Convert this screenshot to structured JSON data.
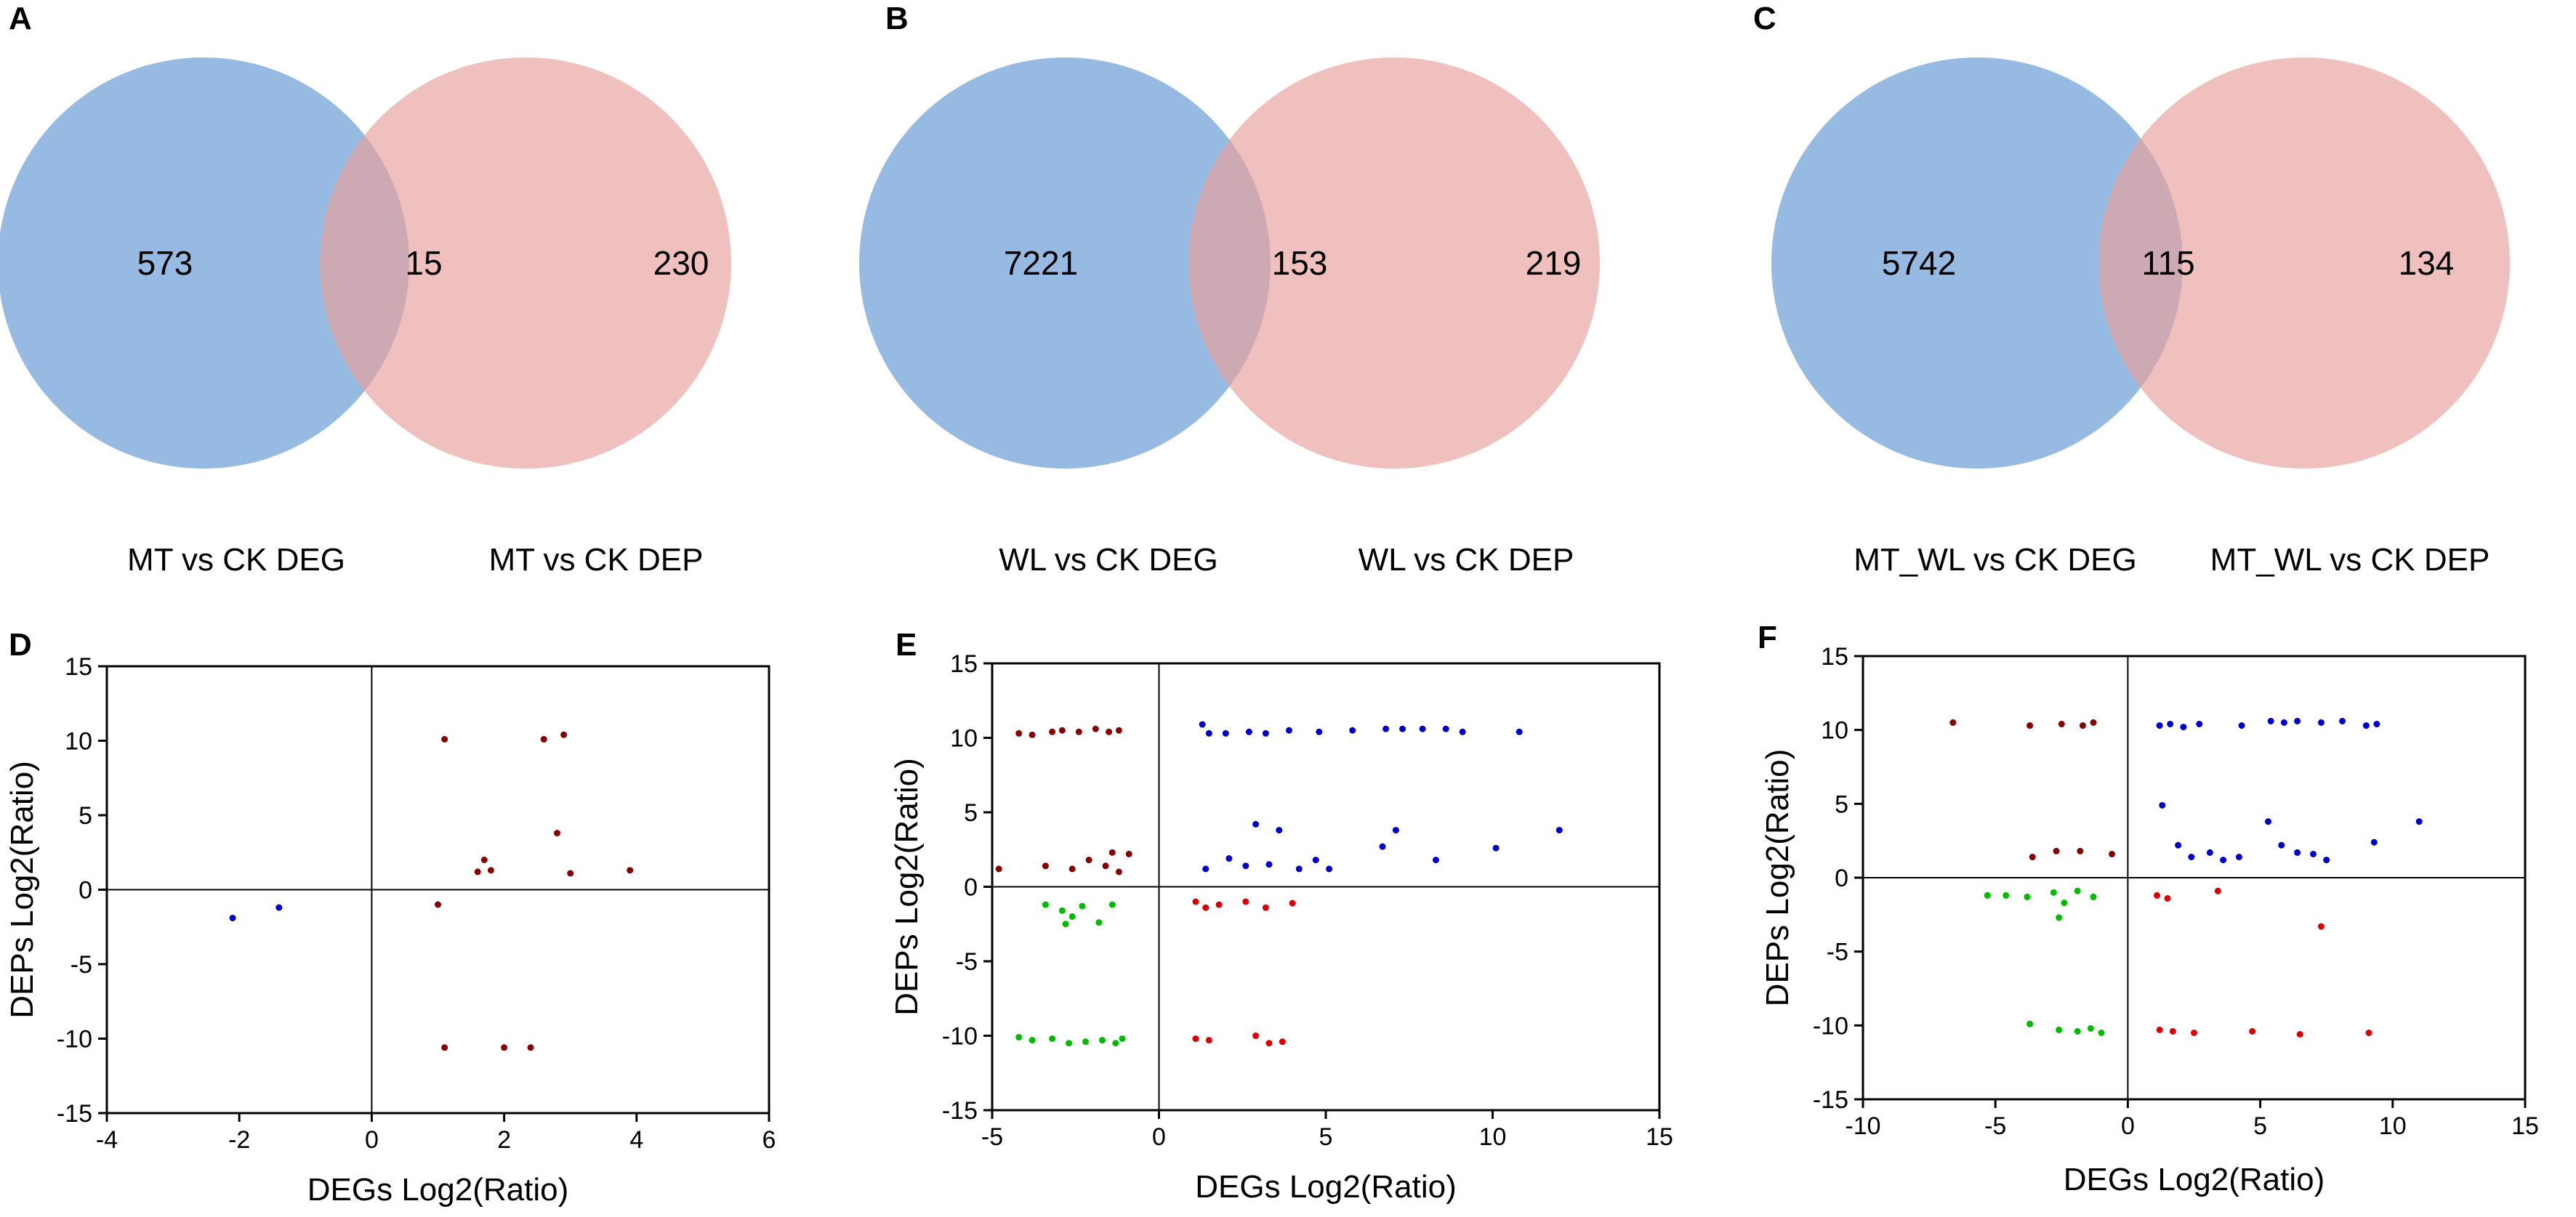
{
  "colors": {
    "deg_circle": "#6d9fd5",
    "dep_circle": "#e7a29e",
    "up_up": "#0000cc",
    "down_up": "#880000",
    "up_down": "#dd0000",
    "down_down": "#00bb00",
    "axis": "#000000"
  },
  "venn": [
    {
      "panel": "A",
      "left_only": "573",
      "overlap": "15",
      "right_only": "230",
      "left_label": "MT vs CK DEG",
      "right_label": "MT vs CK DEP"
    },
    {
      "panel": "B",
      "left_only": "7221",
      "overlap": "153",
      "right_only": "219",
      "left_label": "WL vs CK DEG",
      "right_label": "WL vs CK DEP"
    },
    {
      "panel": "C",
      "left_only": "5742",
      "overlap": "115",
      "right_only": "134",
      "left_label": "MT_WL vs CK DEG",
      "right_label": "MT_WL vs CK DEP"
    }
  ],
  "chart_data": [
    {
      "panel": "D",
      "type": "scatter",
      "xlabel": "DEGs Log2(Ratio)",
      "ylabel": "DEPs Log2(Ratio)",
      "xlim": [
        -4,
        6
      ],
      "ylim": [
        -15,
        15
      ],
      "xticks": [
        -4,
        -2,
        0,
        2,
        4,
        6
      ],
      "yticks": [
        15,
        10,
        5,
        0,
        -5,
        -10,
        -15
      ],
      "series": [
        {
          "name": "blue",
          "color": "#0000cc",
          "points": [
            [
              -2.1,
              -1.9
            ],
            [
              -1.4,
              -1.2
            ]
          ]
        },
        {
          "name": "darkred",
          "color": "#880000",
          "points": [
            [
              1.1,
              10.1
            ],
            [
              2.6,
              10.1
            ],
            [
              2.9,
              10.4
            ],
            [
              2.8,
              3.8
            ],
            [
              1.7,
              2.0
            ],
            [
              1.8,
              1.3
            ],
            [
              1.6,
              1.2
            ],
            [
              3.0,
              1.1
            ],
            [
              3.9,
              1.3
            ],
            [
              1.0,
              -1.0
            ],
            [
              1.1,
              -10.6
            ],
            [
              2.0,
              -10.6
            ],
            [
              2.4,
              -10.6
            ]
          ]
        }
      ]
    },
    {
      "panel": "E",
      "type": "scatter",
      "xlabel": "DEGs Log2(Ratio)",
      "ylabel": "DEPs Log2(Ratio)",
      "xlim": [
        -5,
        15
      ],
      "ylim": [
        -15,
        15
      ],
      "xticks": [
        -5,
        0,
        5,
        10,
        15
      ],
      "yticks": [
        15,
        10,
        5,
        0,
        -5,
        -10,
        -15
      ],
      "series": [
        {
          "name": "blue",
          "color": "#0000cc",
          "points": [
            [
              1.3,
              10.9
            ],
            [
              1.5,
              10.3
            ],
            [
              2.0,
              10.3
            ],
            [
              2.7,
              10.4
            ],
            [
              3.2,
              10.3
            ],
            [
              3.9,
              10.5
            ],
            [
              4.8,
              10.4
            ],
            [
              5.8,
              10.5
            ],
            [
              6.8,
              10.6
            ],
            [
              7.3,
              10.6
            ],
            [
              7.9,
              10.6
            ],
            [
              8.6,
              10.6
            ],
            [
              9.1,
              10.4
            ],
            [
              10.8,
              10.4
            ],
            [
              1.4,
              1.2
            ],
            [
              2.1,
              1.9
            ],
            [
              2.6,
              1.4
            ],
            [
              2.9,
              4.2
            ],
            [
              3.3,
              1.5
            ],
            [
              3.6,
              3.8
            ],
            [
              4.2,
              1.2
            ],
            [
              4.7,
              1.8
            ],
            [
              5.1,
              1.2
            ],
            [
              6.7,
              2.7
            ],
            [
              7.1,
              3.8
            ],
            [
              8.3,
              1.8
            ],
            [
              10.1,
              2.6
            ],
            [
              12.0,
              3.8
            ]
          ]
        },
        {
          "name": "darkred",
          "color": "#880000",
          "points": [
            [
              -4.2,
              10.3
            ],
            [
              -3.8,
              10.2
            ],
            [
              -3.2,
              10.4
            ],
            [
              -2.9,
              10.5
            ],
            [
              -2.4,
              10.4
            ],
            [
              -1.9,
              10.6
            ],
            [
              -1.5,
              10.4
            ],
            [
              -1.2,
              10.5
            ],
            [
              -4.8,
              1.2
            ],
            [
              -3.4,
              1.4
            ],
            [
              -2.6,
              1.2
            ],
            [
              -2.1,
              1.8
            ],
            [
              -1.6,
              1.4
            ],
            [
              -1.4,
              2.3
            ],
            [
              -1.2,
              1.0
            ],
            [
              -0.9,
              2.2
            ]
          ]
        },
        {
          "name": "red",
          "color": "#dd0000",
          "points": [
            [
              1.1,
              -1.0
            ],
            [
              1.4,
              -1.4
            ],
            [
              1.8,
              -1.2
            ],
            [
              2.6,
              -1.0
            ],
            [
              3.2,
              -1.4
            ],
            [
              4.0,
              -1.1
            ],
            [
              1.1,
              -10.2
            ],
            [
              1.5,
              -10.3
            ],
            [
              2.9,
              -10.0
            ],
            [
              3.3,
              -10.5
            ],
            [
              3.7,
              -10.4
            ]
          ]
        },
        {
          "name": "green",
          "color": "#00bb00",
          "points": [
            [
              -4.2,
              -10.1
            ],
            [
              -3.8,
              -10.3
            ],
            [
              -3.2,
              -10.2
            ],
            [
              -2.7,
              -10.5
            ],
            [
              -2.2,
              -10.4
            ],
            [
              -1.7,
              -10.3
            ],
            [
              -1.3,
              -10.5
            ],
            [
              -1.1,
              -10.2
            ],
            [
              -3.4,
              -1.2
            ],
            [
              -2.9,
              -1.6
            ],
            [
              -2.6,
              -2.0
            ],
            [
              -2.3,
              -1.3
            ],
            [
              -1.8,
              -2.4
            ],
            [
              -1.4,
              -1.2
            ],
            [
              -2.8,
              -2.5
            ]
          ]
        }
      ]
    },
    {
      "panel": "F",
      "type": "scatter",
      "xlabel": "DEGs Log2(Ratio)",
      "ylabel": "DEPs Log2(Ratio)",
      "xlim": [
        -10,
        15
      ],
      "ylim": [
        -15,
        15
      ],
      "xticks": [
        -10,
        -5,
        0,
        5,
        10,
        15
      ],
      "yticks": [
        15,
        10,
        5,
        0,
        -5,
        -10,
        -15
      ],
      "series": [
        {
          "name": "blue",
          "color": "#0000cc",
          "points": [
            [
              1.2,
              10.3
            ],
            [
              1.6,
              10.4
            ],
            [
              2.1,
              10.2
            ],
            [
              2.7,
              10.4
            ],
            [
              4.3,
              10.3
            ],
            [
              5.4,
              10.6
            ],
            [
              5.9,
              10.5
            ],
            [
              6.4,
              10.6
            ],
            [
              7.3,
              10.5
            ],
            [
              8.1,
              10.6
            ],
            [
              9.0,
              10.3
            ],
            [
              9.4,
              10.4
            ],
            [
              1.3,
              4.9
            ],
            [
              1.9,
              2.2
            ],
            [
              2.4,
              1.4
            ],
            [
              3.1,
              1.7
            ],
            [
              3.6,
              1.2
            ],
            [
              4.2,
              1.4
            ],
            [
              5.3,
              3.8
            ],
            [
              5.8,
              2.2
            ],
            [
              6.4,
              1.7
            ],
            [
              7.0,
              1.6
            ],
            [
              7.5,
              1.2
            ],
            [
              9.3,
              2.4
            ],
            [
              11.0,
              3.8
            ]
          ]
        },
        {
          "name": "darkred",
          "color": "#880000",
          "points": [
            [
              -6.6,
              10.5
            ],
            [
              -3.7,
              10.3
            ],
            [
              -2.5,
              10.4
            ],
            [
              -1.7,
              10.3
            ],
            [
              -1.3,
              10.5
            ],
            [
              -2.7,
              1.8
            ],
            [
              -3.6,
              1.4
            ],
            [
              -1.8,
              1.8
            ],
            [
              -0.6,
              1.6
            ]
          ]
        },
        {
          "name": "red",
          "color": "#dd0000",
          "points": [
            [
              1.1,
              -1.2
            ],
            [
              1.5,
              -1.4
            ],
            [
              3.4,
              -0.9
            ],
            [
              7.3,
              -3.3
            ],
            [
              1.2,
              -10.3
            ],
            [
              1.7,
              -10.4
            ],
            [
              2.5,
              -10.5
            ],
            [
              4.7,
              -10.4
            ],
            [
              6.5,
              -10.6
            ],
            [
              9.1,
              -10.5
            ]
          ]
        },
        {
          "name": "green",
          "color": "#00bb00",
          "points": [
            [
              -5.3,
              -1.2
            ],
            [
              -4.6,
              -1.2
            ],
            [
              -3.8,
              -1.3
            ],
            [
              -2.8,
              -1.0
            ],
            [
              -2.4,
              -1.7
            ],
            [
              -1.9,
              -0.9
            ],
            [
              -1.3,
              -1.3
            ],
            [
              -2.6,
              -2.7
            ],
            [
              -3.7,
              -9.9
            ],
            [
              -2.6,
              -10.3
            ],
            [
              -1.9,
              -10.4
            ],
            [
              -1.4,
              -10.2
            ],
            [
              -1.0,
              -10.5
            ]
          ]
        }
      ]
    }
  ]
}
